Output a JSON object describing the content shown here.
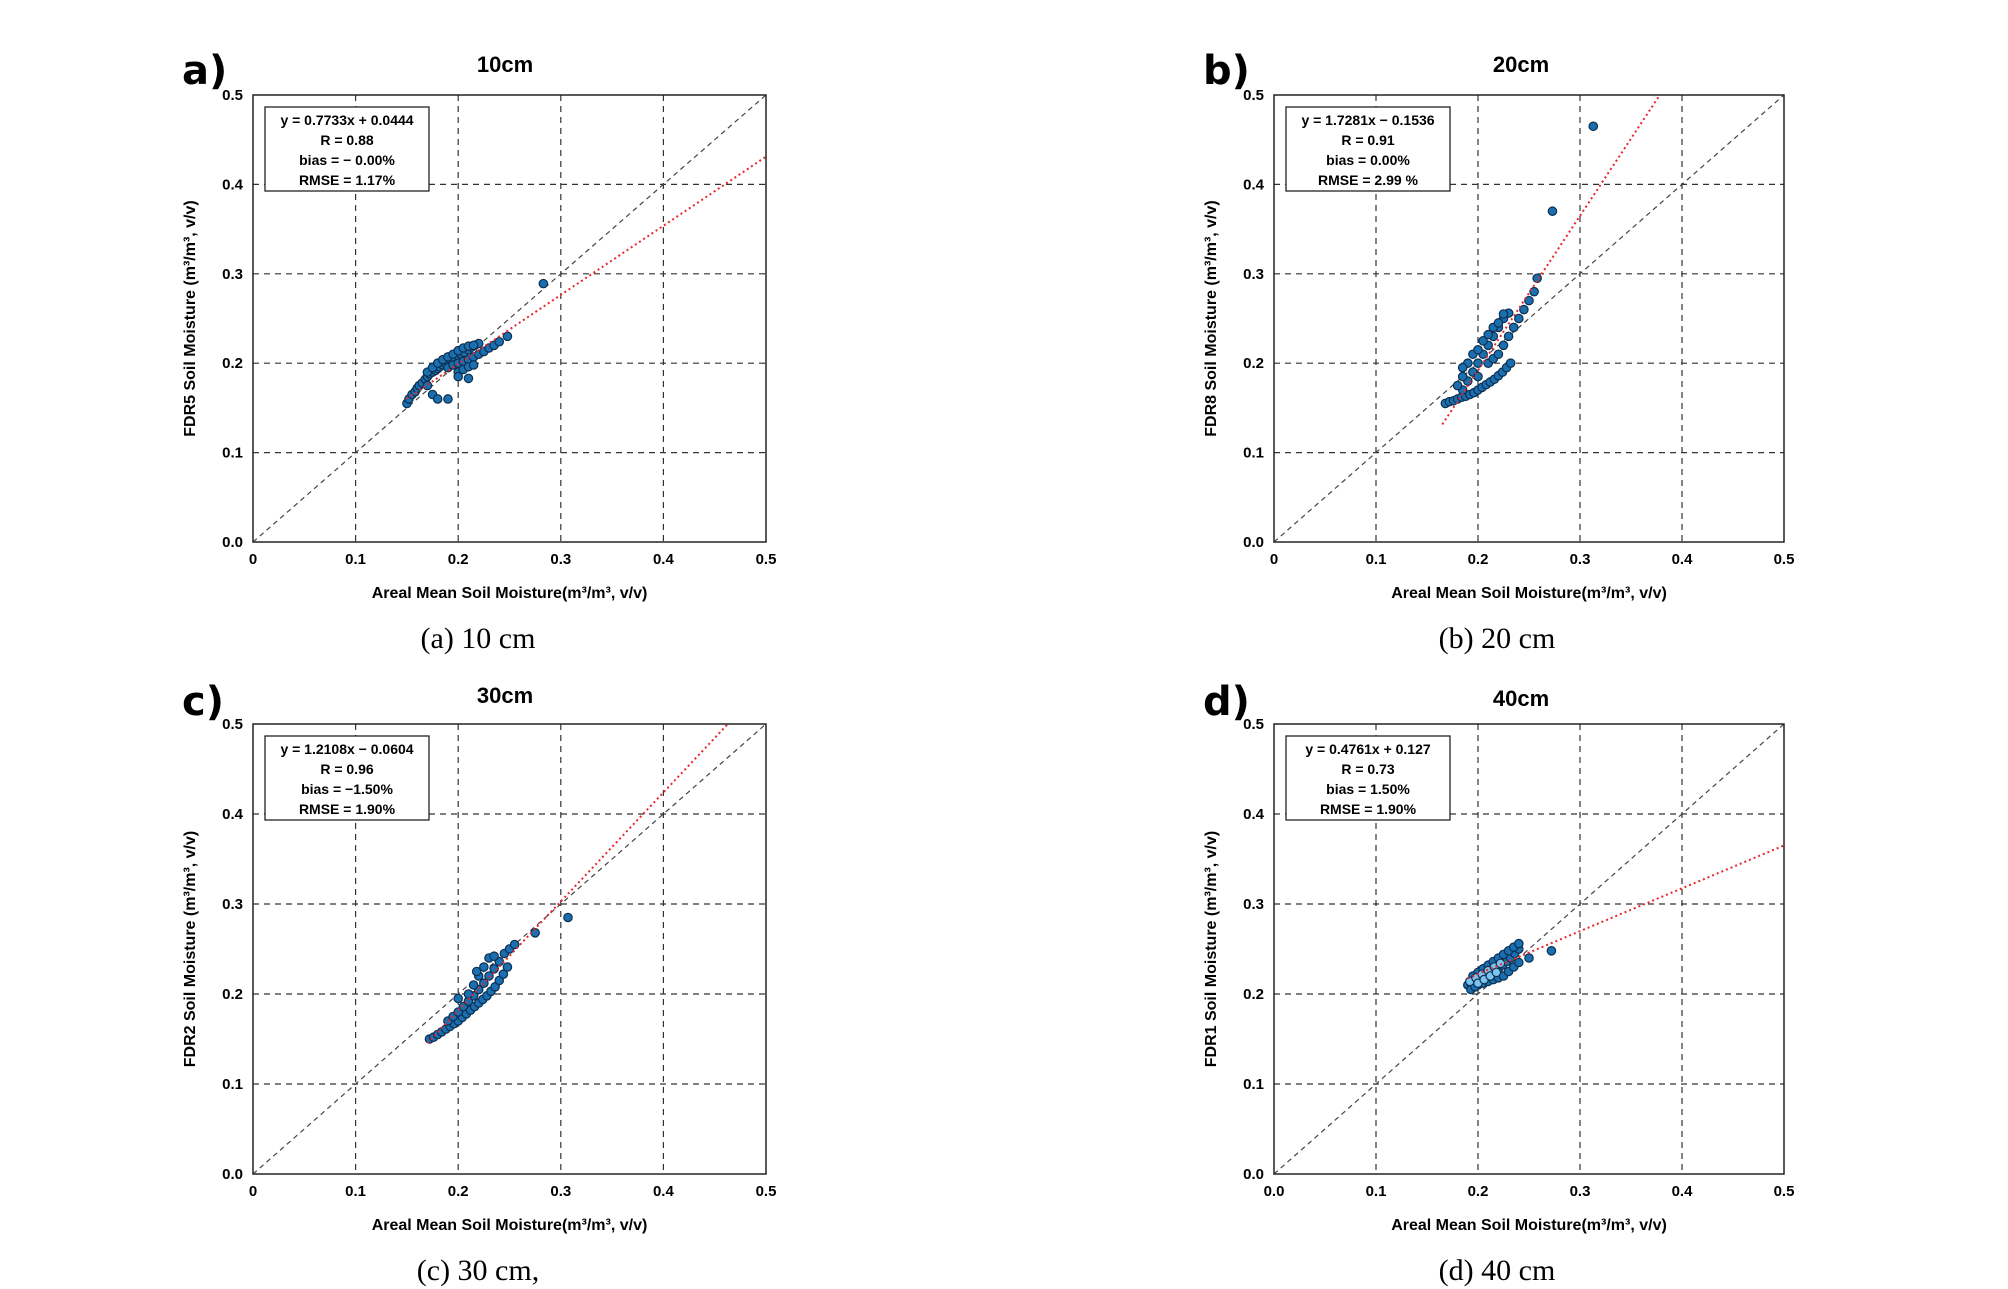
{
  "panels": [
    {
      "id": "a",
      "letter": "a)",
      "title": "10cm",
      "caption": "(a) 10 cm",
      "chart_data": {
        "type": "scatter",
        "title": "10cm",
        "xlabel": "Areal Mean Soil Moisture(m³/m³, v/v)",
        "ylabel": "FDR5 Soil Moisture (m³/m³, v/v)",
        "xlim": [
          0,
          0.5
        ],
        "ylim": [
          0,
          0.5
        ],
        "xticks": [
          "0",
          "0.1",
          "0.2",
          "0.3",
          "0.4",
          "0.5"
        ],
        "yticks": [
          "0.0",
          "0.1",
          "0.2",
          "0.3",
          "0.4",
          "0.5"
        ],
        "grid": true,
        "stats": [
          "y = 0.7733x + 0.0444",
          "R = 0.88",
          "bias = − 0.00%",
          "RMSE = 1.17%"
        ],
        "fit": {
          "slope": 0.7733,
          "intercept": 0.0444,
          "x_range": [
            0.15,
            0.5
          ]
        },
        "points": [
          [
            0.15,
            0.155
          ],
          [
            0.152,
            0.16
          ],
          [
            0.155,
            0.165
          ],
          [
            0.158,
            0.168
          ],
          [
            0.16,
            0.172
          ],
          [
            0.162,
            0.175
          ],
          [
            0.165,
            0.178
          ],
          [
            0.168,
            0.182
          ],
          [
            0.17,
            0.185
          ],
          [
            0.172,
            0.188
          ],
          [
            0.175,
            0.19
          ],
          [
            0.178,
            0.192
          ],
          [
            0.18,
            0.194
          ],
          [
            0.182,
            0.196
          ],
          [
            0.185,
            0.198
          ],
          [
            0.188,
            0.2
          ],
          [
            0.19,
            0.202
          ],
          [
            0.193,
            0.204
          ],
          [
            0.196,
            0.206
          ],
          [
            0.2,
            0.208
          ],
          [
            0.203,
            0.21
          ],
          [
            0.206,
            0.212
          ],
          [
            0.21,
            0.215
          ],
          [
            0.213,
            0.218
          ],
          [
            0.216,
            0.22
          ],
          [
            0.22,
            0.222
          ],
          [
            0.17,
            0.19
          ],
          [
            0.175,
            0.195
          ],
          [
            0.18,
            0.2
          ],
          [
            0.185,
            0.204
          ],
          [
            0.19,
            0.207
          ],
          [
            0.195,
            0.21
          ],
          [
            0.2,
            0.214
          ],
          [
            0.205,
            0.217
          ],
          [
            0.21,
            0.219
          ],
          [
            0.215,
            0.22
          ],
          [
            0.19,
            0.195
          ],
          [
            0.195,
            0.198
          ],
          [
            0.2,
            0.2
          ],
          [
            0.205,
            0.202
          ],
          [
            0.21,
            0.204
          ],
          [
            0.215,
            0.207
          ],
          [
            0.22,
            0.21
          ],
          [
            0.225,
            0.213
          ],
          [
            0.23,
            0.217
          ],
          [
            0.235,
            0.22
          ],
          [
            0.24,
            0.224
          ],
          [
            0.248,
            0.23
          ],
          [
            0.2,
            0.19
          ],
          [
            0.205,
            0.193
          ],
          [
            0.21,
            0.196
          ],
          [
            0.215,
            0.198
          ],
          [
            0.175,
            0.165
          ],
          [
            0.18,
            0.16
          ],
          [
            0.19,
            0.16
          ],
          [
            0.2,
            0.185
          ],
          [
            0.21,
            0.183
          ],
          [
            0.17,
            0.175
          ],
          [
            0.283,
            0.289
          ]
        ]
      }
    },
    {
      "id": "b",
      "letter": "b)",
      "title": "20cm",
      "caption": "(b) 20 cm",
      "chart_data": {
        "type": "scatter",
        "title": "20cm",
        "xlabel": "Areal Mean Soil Moisture(m³/m³, v/v)",
        "ylabel": "FDR8 Soil Moisture (m³/m³, v/v)",
        "xlim": [
          0,
          0.5
        ],
        "ylim": [
          0,
          0.5
        ],
        "xticks": [
          "0",
          "0.1",
          "0.2",
          "0.3",
          "0.4",
          "0.5"
        ],
        "yticks": [
          "0.0",
          "0.1",
          "0.2",
          "0.3",
          "0.4",
          "0.5"
        ],
        "grid": true,
        "stats": [
          "y = 1.7281x − 0.1536",
          "R = 0.91",
          "bias = 0.00%",
          "RMSE = 2.99 %"
        ],
        "fit": {
          "slope": 1.7281,
          "intercept": -0.1536,
          "x_range": [
            0.165,
            0.5
          ]
        },
        "points": [
          [
            0.168,
            0.155
          ],
          [
            0.172,
            0.157
          ],
          [
            0.176,
            0.158
          ],
          [
            0.18,
            0.16
          ],
          [
            0.184,
            0.162
          ],
          [
            0.188,
            0.163
          ],
          [
            0.192,
            0.165
          ],
          [
            0.196,
            0.167
          ],
          [
            0.2,
            0.17
          ],
          [
            0.204,
            0.173
          ],
          [
            0.208,
            0.176
          ],
          [
            0.212,
            0.179
          ],
          [
            0.216,
            0.182
          ],
          [
            0.22,
            0.186
          ],
          [
            0.224,
            0.19
          ],
          [
            0.228,
            0.195
          ],
          [
            0.232,
            0.2
          ],
          [
            0.185,
            0.17
          ],
          [
            0.19,
            0.18
          ],
          [
            0.195,
            0.19
          ],
          [
            0.2,
            0.2
          ],
          [
            0.205,
            0.21
          ],
          [
            0.21,
            0.22
          ],
          [
            0.215,
            0.23
          ],
          [
            0.22,
            0.24
          ],
          [
            0.225,
            0.25
          ],
          [
            0.23,
            0.256
          ],
          [
            0.185,
            0.185
          ],
          [
            0.19,
            0.2
          ],
          [
            0.195,
            0.21
          ],
          [
            0.2,
            0.215
          ],
          [
            0.205,
            0.225
          ],
          [
            0.21,
            0.232
          ],
          [
            0.215,
            0.24
          ],
          [
            0.22,
            0.245
          ],
          [
            0.225,
            0.255
          ],
          [
            0.21,
            0.2
          ],
          [
            0.215,
            0.205
          ],
          [
            0.22,
            0.21
          ],
          [
            0.225,
            0.22
          ],
          [
            0.23,
            0.23
          ],
          [
            0.235,
            0.24
          ],
          [
            0.24,
            0.25
          ],
          [
            0.245,
            0.26
          ],
          [
            0.25,
            0.27
          ],
          [
            0.255,
            0.28
          ],
          [
            0.258,
            0.295
          ],
          [
            0.18,
            0.175
          ],
          [
            0.185,
            0.195
          ],
          [
            0.2,
            0.185
          ],
          [
            0.273,
            0.37
          ],
          [
            0.313,
            0.465
          ]
        ]
      }
    },
    {
      "id": "c",
      "letter": "c)",
      "title": "30cm",
      "caption": "(c) 30 cm,",
      "chart_data": {
        "type": "scatter",
        "title": "30cm",
        "xlabel": "Areal Mean Soil Moisture(m³/m³, v/v)",
        "ylabel": "FDR2 Soil Moisture (m³/m³, v/v)",
        "xlim": [
          0,
          0.5
        ],
        "ylim": [
          0,
          0.5
        ],
        "xticks": [
          "0",
          "0.1",
          "0.2",
          "0.3",
          "0.4",
          "0.5"
        ],
        "yticks": [
          "0.0",
          "0.1",
          "0.2",
          "0.3",
          "0.4",
          "0.5"
        ],
        "grid": true,
        "stats": [
          "y = 1.2108x − 0.0604",
          "R = 0.96",
          "bias = −1.50%",
          "RMSE = 1.90%"
        ],
        "fit": {
          "slope": 1.2108,
          "intercept": -0.0604,
          "x_range": [
            0.17,
            0.5
          ]
        },
        "points": [
          [
            0.172,
            0.15
          ],
          [
            0.176,
            0.152
          ],
          [
            0.18,
            0.155
          ],
          [
            0.184,
            0.158
          ],
          [
            0.188,
            0.161
          ],
          [
            0.192,
            0.164
          ],
          [
            0.196,
            0.167
          ],
          [
            0.2,
            0.17
          ],
          [
            0.204,
            0.174
          ],
          [
            0.208,
            0.178
          ],
          [
            0.212,
            0.182
          ],
          [
            0.216,
            0.186
          ],
          [
            0.22,
            0.19
          ],
          [
            0.224,
            0.194
          ],
          [
            0.228,
            0.198
          ],
          [
            0.232,
            0.203
          ],
          [
            0.236,
            0.208
          ],
          [
            0.24,
            0.215
          ],
          [
            0.244,
            0.222
          ],
          [
            0.248,
            0.23
          ],
          [
            0.19,
            0.17
          ],
          [
            0.195,
            0.175
          ],
          [
            0.2,
            0.18
          ],
          [
            0.205,
            0.186
          ],
          [
            0.21,
            0.192
          ],
          [
            0.215,
            0.198
          ],
          [
            0.22,
            0.205
          ],
          [
            0.225,
            0.212
          ],
          [
            0.23,
            0.22
          ],
          [
            0.235,
            0.228
          ],
          [
            0.24,
            0.236
          ],
          [
            0.245,
            0.245
          ],
          [
            0.25,
            0.25
          ],
          [
            0.255,
            0.255
          ],
          [
            0.2,
            0.195
          ],
          [
            0.21,
            0.2
          ],
          [
            0.215,
            0.21
          ],
          [
            0.22,
            0.22
          ],
          [
            0.225,
            0.23
          ],
          [
            0.23,
            0.24
          ],
          [
            0.235,
            0.242
          ],
          [
            0.218,
            0.225
          ],
          [
            0.275,
            0.268
          ],
          [
            0.307,
            0.285
          ]
        ]
      }
    },
    {
      "id": "d",
      "letter": "d)",
      "title": "40cm",
      "caption": "(d) 40 cm",
      "chart_data": {
        "type": "scatter",
        "title": "40cm",
        "xlabel": "Areal Mean Soil Moisture(m³/m³, v/v)",
        "ylabel": "FDR1 Soil Moisture (m³/m³, v/v)",
        "xlim": [
          0,
          0.5
        ],
        "ylim": [
          0,
          0.5
        ],
        "xticks": [
          "0.0",
          "0.1",
          "0.2",
          "0.3",
          "0.4",
          "0.5"
        ],
        "yticks": [
          "0.0",
          "0.1",
          "0.2",
          "0.3",
          "0.4",
          "0.5"
        ],
        "grid": true,
        "stats": [
          "y = 0.4761x + 0.127",
          "R = 0.73",
          "bias = 1.50%",
          "RMSE = 1.90%"
        ],
        "fit": {
          "slope": 0.4761,
          "intercept": 0.127,
          "x_range": [
            0.19,
            0.5
          ]
        },
        "points": [
          [
            0.19,
            0.21
          ],
          [
            0.193,
            0.212
          ],
          [
            0.196,
            0.214
          ],
          [
            0.2,
            0.216
          ],
          [
            0.204,
            0.218
          ],
          [
            0.208,
            0.22
          ],
          [
            0.212,
            0.222
          ],
          [
            0.216,
            0.225
          ],
          [
            0.22,
            0.228
          ],
          [
            0.224,
            0.232
          ],
          [
            0.228,
            0.236
          ],
          [
            0.232,
            0.24
          ],
          [
            0.236,
            0.245
          ],
          [
            0.24,
            0.25
          ],
          [
            0.195,
            0.22
          ],
          [
            0.2,
            0.224
          ],
          [
            0.205,
            0.228
          ],
          [
            0.21,
            0.232
          ],
          [
            0.215,
            0.236
          ],
          [
            0.22,
            0.24
          ],
          [
            0.225,
            0.244
          ],
          [
            0.23,
            0.248
          ],
          [
            0.235,
            0.252
          ],
          [
            0.24,
            0.256
          ],
          [
            0.2,
            0.21
          ],
          [
            0.205,
            0.212
          ],
          [
            0.21,
            0.214
          ],
          [
            0.215,
            0.216
          ],
          [
            0.22,
            0.218
          ],
          [
            0.225,
            0.22
          ],
          [
            0.23,
            0.225
          ],
          [
            0.235,
            0.23
          ],
          [
            0.24,
            0.235
          ],
          [
            0.25,
            0.24
          ],
          [
            0.193,
            0.205
          ],
          [
            0.197,
            0.208
          ],
          [
            0.272,
            0.248
          ]
        ],
        "points_light": [
          [
            0.192,
            0.214
          ],
          [
            0.198,
            0.218
          ],
          [
            0.204,
            0.222
          ],
          [
            0.21,
            0.226
          ],
          [
            0.216,
            0.23
          ],
          [
            0.222,
            0.234
          ],
          [
            0.2,
            0.212
          ],
          [
            0.206,
            0.216
          ],
          [
            0.212,
            0.22
          ],
          [
            0.218,
            0.224
          ]
        ]
      }
    }
  ]
}
